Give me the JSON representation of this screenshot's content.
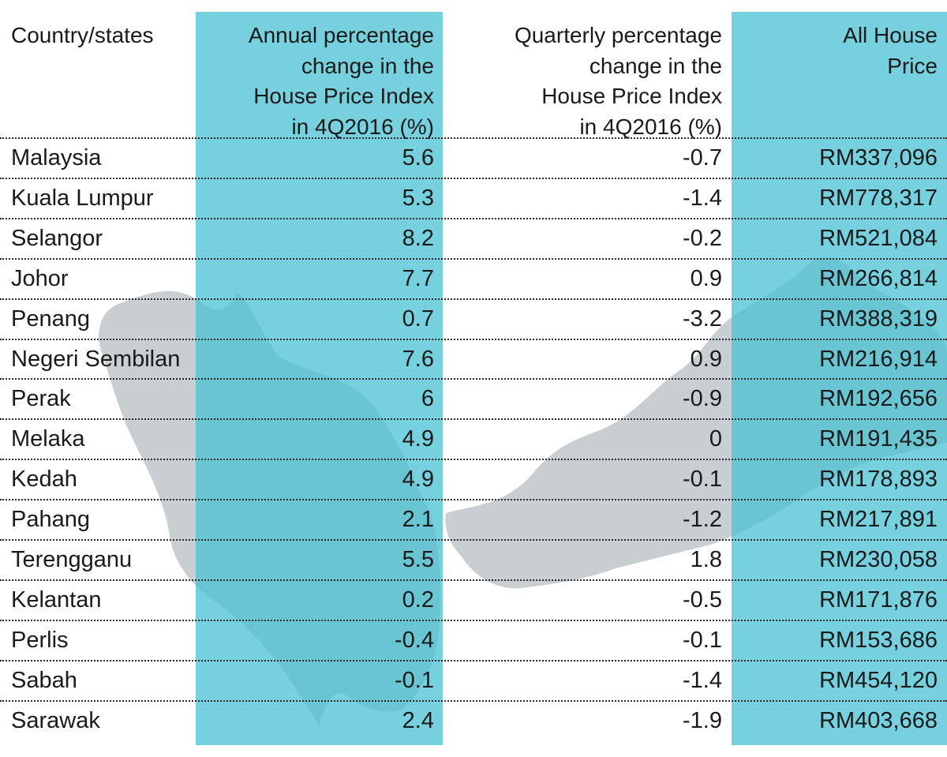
{
  "chart_data": {
    "type": "table",
    "columns": [
      "Country/states",
      "Annual percentage change in the House Price Index in 4Q2016 (%)",
      "Quarterly percentage change in the House Price Index in 4Q2016 (%)",
      "All House Price"
    ],
    "header_lines": [
      [
        "Country/states"
      ],
      [
        "Annual percentage",
        "change in the",
        "House Price Index",
        "in 4Q2016 (%)"
      ],
      [
        "Quarterly percentage",
        "change in the",
        "House Price Index",
        "in 4Q2016 (%)"
      ],
      [
        "All House",
        "Price"
      ]
    ],
    "rows": [
      [
        "Malaysia",
        "5.6",
        "-0.7",
        "RM337,096"
      ],
      [
        "Kuala Lumpur",
        "5.3",
        "-1.4",
        "RM778,317"
      ],
      [
        "Selangor",
        "8.2",
        "-0.2",
        "RM521,084"
      ],
      [
        "Johor",
        "7.7",
        "0.9",
        "RM266,814"
      ],
      [
        "Penang",
        "0.7",
        "-3.2",
        "RM388,319"
      ],
      [
        "Negeri Sembilan",
        "7.6",
        "0.9",
        "RM216,914"
      ],
      [
        "Perak",
        "6",
        "-0.9",
        "RM192,656"
      ],
      [
        "Melaka",
        "4.9",
        "0",
        "RM191,435"
      ],
      [
        "Kedah",
        "4.9",
        "-0.1",
        "RM178,893"
      ],
      [
        "Pahang",
        "2.1",
        "-1.2",
        "RM217,891"
      ],
      [
        "Terengganu",
        "5.5",
        "1.8",
        "RM230,058"
      ],
      [
        "Kelantan",
        "0.2",
        "-0.5",
        "RM171,876"
      ],
      [
        "Perlis",
        "-0.4",
        "-0.1",
        "RM153,686"
      ],
      [
        "Sabah",
        "-0.1",
        "-1.4",
        "RM454,120"
      ],
      [
        "Sarawak",
        "2.4",
        "-1.9",
        "RM403,668"
      ]
    ],
    "highlight_columns": [
      1,
      3
    ]
  },
  "colors": {
    "highlight_band": "#4fc3d3",
    "map_silhouette": "#c9ced3",
    "text": "#1a1a1a",
    "row_divider": "#2a2a2a"
  }
}
